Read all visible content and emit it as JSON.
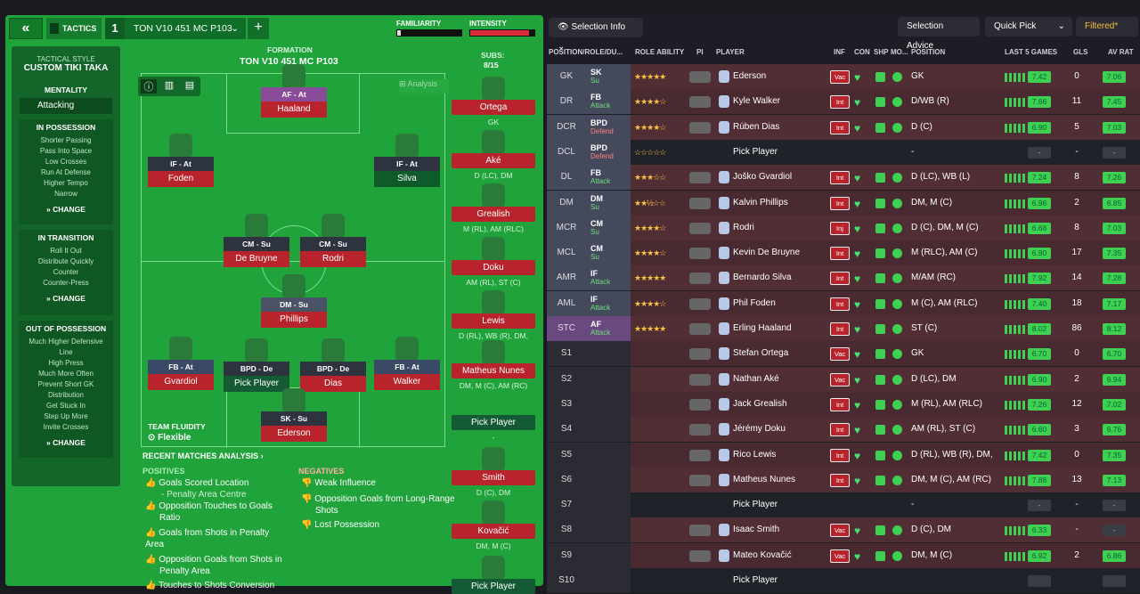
{
  "header": {
    "back": "«",
    "tactics": "TACTICS",
    "tactic_num": "1",
    "tactic_name": "TON V10 451  MC P103",
    "familiarity": "FAMILIARITY",
    "intensity": "INTENSITY",
    "plus": "+"
  },
  "sidebar": {
    "style_label": "TACTICAL STYLE",
    "style_value": "CUSTOM TIKI TAKA",
    "mentality_label": "MENTALITY",
    "mentality_value": "Attacking",
    "in_possession": {
      "title": "IN POSSESSION",
      "items": [
        "Shorter Passing",
        "Pass Into Space",
        "Low Crosses",
        "Run At Defense",
        "Higher Tempo",
        "Narrow"
      ],
      "change": "CHANGE"
    },
    "in_transition": {
      "title": "IN TRANSITION",
      "items": [
        "Roll It Out",
        "Distribute Quickly",
        "Counter",
        "Counter-Press"
      ],
      "change": "CHANGE"
    },
    "out_possession": {
      "title": "OUT OF POSSESSION",
      "items": [
        "Much Higher Defensive",
        "Line",
        "High Press",
        "Much More Often",
        "Prevent Short GK",
        "Distribution",
        "Get Stuck In",
        "Step Up More",
        "Invite Crosses"
      ],
      "change": "CHANGE"
    }
  },
  "formation": {
    "label": "FORMATION",
    "name": "TON V10 451  MC P103",
    "analysis": "Analysis",
    "fluidity_label": "TEAM FLUIDITY",
    "fluidity_value": "Flexible"
  },
  "players_pitch": [
    {
      "tag": "AF - At",
      "name": "Haaland"
    },
    {
      "tag": "IF - At",
      "name": "Foden"
    },
    {
      "tag": "IF - At",
      "name": "Silva"
    },
    {
      "tag": "CM - Su",
      "name": "De Bruyne"
    },
    {
      "tag": "CM - Su",
      "name": "Rodri"
    },
    {
      "tag": "DM - Su",
      "name": "Phillips"
    },
    {
      "tag": "FB - At",
      "name": "Gvardiol"
    },
    {
      "tag": "BPD - De",
      "name": "Pick Player"
    },
    {
      "tag": "BPD - De",
      "name": "Dias"
    },
    {
      "tag": "FB - At",
      "name": "Walker"
    },
    {
      "tag": "SK - Su",
      "name": "Ederson"
    }
  ],
  "subs": {
    "label": "SUBS:",
    "count": "8/15",
    "list": [
      {
        "name": "Ortega",
        "pos": "GK"
      },
      {
        "name": "Aké",
        "pos": "D (LC), DM"
      },
      {
        "name": "Grealish",
        "pos": "M (RL), AM (RLC)"
      },
      {
        "name": "Doku",
        "pos": "AM (RL), ST (C)"
      },
      {
        "name": "Lewis",
        "pos": "D (RL), WB (R), DM, M..."
      },
      {
        "name": "Matheus Nunes",
        "pos": "DM, M (C), AM (RC)"
      },
      {
        "name": "Pick Player",
        "pos": "-"
      },
      {
        "name": "Smith",
        "pos": "D (C), DM"
      },
      {
        "name": "Kovačić",
        "pos": "DM, M (C)"
      },
      {
        "name": "Pick Player",
        "pos": ""
      }
    ]
  },
  "analysis": {
    "title": "RECENT MATCHES ANALYSIS ›",
    "positives_label": "POSITIVES",
    "negatives_label": "NEGATIVES",
    "positives": [
      "Goals Scored Location",
      "- Penalty Area Centre",
      "Opposition Touches to Goals",
      "Ratio",
      "Goals from Shots in Penalty Area",
      "Opposition Goals from Shots in",
      "Penalty Area",
      "Touches to Shots Conversion"
    ],
    "negatives": [
      "Weak Influence",
      "Opposition Goals from Long-Range",
      "Shots",
      "Lost Possession"
    ]
  },
  "toolbar": {
    "selection_info": "Selection Info",
    "selection_advice": "Selection Advice",
    "quick_pick": "Quick Pick",
    "filtered": "Filtered*"
  },
  "columns": [
    "POSITION/ROLE/DU...",
    "ROLE ABILITY",
    "PI",
    "PLAYER",
    "INF",
    "CON",
    "SHP",
    "MO...",
    "POSITION",
    "LAST 5 GAMES",
    "GLS",
    "AV RAT"
  ],
  "rows": [
    {
      "pos": "GK",
      "role": "SK",
      "duty": "Su",
      "stars": "★★★★★",
      "name": "Ederson",
      "inf": "Vac",
      "position": "GK",
      "rating": "7.42",
      "gls": "0",
      "av": "7.06"
    },
    {
      "pos": "DR",
      "role": "FB",
      "duty": "Attack",
      "stars": "★★★★☆",
      "name": "Kyle Walker",
      "inf": "Int",
      "position": "D/WB (R)",
      "rating": "7.66",
      "gls": "11",
      "av": "7.45"
    },
    {
      "pos": "DCR",
      "role": "BPD",
      "duty": "Defend",
      "stars": "★★★★☆",
      "name": "Rúben Dias",
      "inf": "Int",
      "position": "D (C)",
      "rating": "6.90",
      "gls": "5",
      "av": "7.03"
    },
    {
      "pos": "DCL",
      "role": "BPD",
      "duty": "Defend",
      "stars": "☆☆☆☆☆",
      "name": "Pick Player",
      "inf": "",
      "position": "-",
      "rating": "-",
      "gls": "-",
      "av": "-"
    },
    {
      "pos": "DL",
      "role": "FB",
      "duty": "Attack",
      "stars": "★★★☆☆",
      "name": "Joško Gvardiol",
      "inf": "Int",
      "position": "D (LC), WB (L)",
      "rating": "7.24",
      "gls": "8",
      "av": "7.26"
    },
    {
      "pos": "DM",
      "role": "DM",
      "duty": "Su",
      "stars": "★★½☆☆",
      "name": "Kalvin Phillips",
      "inf": "Int",
      "position": "DM, M (C)",
      "rating": "6.96",
      "gls": "2",
      "av": "6.85"
    },
    {
      "pos": "MCR",
      "role": "CM",
      "duty": "Su",
      "stars": "★★★★☆",
      "name": "Rodri",
      "inf": "Inj",
      "position": "D (C), DM, M (C)",
      "rating": "6.68",
      "gls": "8",
      "av": "7.03"
    },
    {
      "pos": "MCL",
      "role": "CM",
      "duty": "Su",
      "stars": "★★★★☆",
      "name": "Kevin De Bruyne",
      "inf": "Int",
      "position": "M (RLC), AM (C)",
      "rating": "6.90",
      "gls": "17",
      "av": "7.35"
    },
    {
      "pos": "AMR",
      "role": "IF",
      "duty": "Attack",
      "stars": "★★★★★",
      "name": "Bernardo Silva",
      "inf": "Int",
      "position": "M/AM (RC)",
      "rating": "7.92",
      "gls": "14",
      "av": "7.28"
    },
    {
      "pos": "AML",
      "role": "IF",
      "duty": "Attack",
      "stars": "★★★★☆",
      "name": "Phil Foden",
      "inf": "Int",
      "position": "M (C), AM (RLC)",
      "rating": "7.40",
      "gls": "18",
      "av": "7.17"
    },
    {
      "pos": "STC",
      "role": "AF",
      "duty": "Attack",
      "stars": "★★★★★",
      "name": "Erling Haaland",
      "inf": "Int",
      "position": "ST (C)",
      "rating": "8.02",
      "gls": "86",
      "av": "8.12"
    },
    {
      "pos": "S1",
      "role": "",
      "duty": "",
      "stars": "",
      "name": "Stefan Ortega",
      "inf": "Vac",
      "position": "GK",
      "rating": "6.70",
      "gls": "0",
      "av": "6.70"
    },
    {
      "pos": "S2",
      "role": "",
      "duty": "",
      "stars": "",
      "name": "Nathan Aké",
      "inf": "Vac",
      "position": "D (LC), DM",
      "rating": "6.90",
      "gls": "2",
      "av": "6.94"
    },
    {
      "pos": "S3",
      "role": "",
      "duty": "",
      "stars": "",
      "name": "Jack Grealish",
      "inf": "Int",
      "position": "M (RL), AM (RLC)",
      "rating": "7.26",
      "gls": "12",
      "av": "7.02"
    },
    {
      "pos": "S4",
      "role": "",
      "duty": "",
      "stars": "",
      "name": "Jérémy Doku",
      "inf": "Int",
      "position": "AM (RL), ST (C)",
      "rating": "6.60",
      "gls": "3",
      "av": "6.76"
    },
    {
      "pos": "S5",
      "role": "",
      "duty": "",
      "stars": "",
      "name": "Rico Lewis",
      "inf": "Int",
      "position": "D (RL), WB (R), DM, M...",
      "rating": "7.42",
      "gls": "0",
      "av": "7.35"
    },
    {
      "pos": "S6",
      "role": "",
      "duty": "",
      "stars": "",
      "name": "Matheus Nunes",
      "inf": "Int",
      "position": "DM, M (C), AM (RC)",
      "rating": "7.88",
      "gls": "13",
      "av": "7.13"
    },
    {
      "pos": "S7",
      "role": "",
      "duty": "",
      "stars": "",
      "name": "Pick Player",
      "inf": "",
      "position": "-",
      "rating": "-",
      "gls": "-",
      "av": "-"
    },
    {
      "pos": "S8",
      "role": "",
      "duty": "",
      "stars": "",
      "name": "Isaac Smith",
      "inf": "Vac",
      "position": "D (C), DM",
      "rating": "6.33",
      "gls": "-",
      "av": "-"
    },
    {
      "pos": "S9",
      "role": "",
      "duty": "",
      "stars": "",
      "name": "Mateo Kovačić",
      "inf": "Vac",
      "position": "DM, M (C)",
      "rating": "6.92",
      "gls": "2",
      "av": "6.86"
    },
    {
      "pos": "S10",
      "role": "",
      "duty": "",
      "stars": "",
      "name": "Pick Player",
      "inf": "",
      "position": "",
      "rating": "",
      "gls": "",
      "av": ""
    }
  ]
}
